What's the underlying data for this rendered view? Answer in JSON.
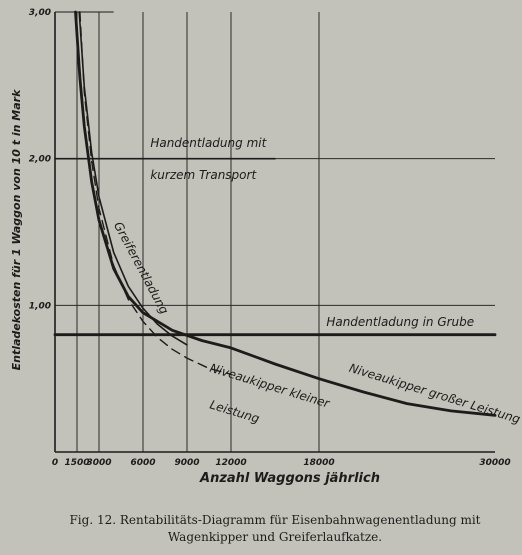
{
  "chart_data": {
    "type": "line",
    "ylabel": "Entladekosten für 1 Waggon von 10 t in Mark",
    "xlabel": "Anzahl Waggons jährlich",
    "xlim": [
      0,
      30000
    ],
    "ylim": [
      0,
      3.0
    ],
    "x_ticks": [
      0,
      1500,
      3000,
      6000,
      9000,
      12000,
      18000,
      30000
    ],
    "x_tick_labels": [
      "0",
      "1500",
      "3000",
      "6000",
      "9000",
      "12000",
      "18000",
      "30000"
    ],
    "y_ticks": [
      1.0,
      2.0,
      3.0
    ],
    "y_tick_labels": [
      "1,00",
      "2,00",
      "3,00"
    ],
    "grid": true,
    "series": [
      {
        "name": "Handentladung mit kurzem Transport",
        "style": "thin-solid",
        "x": [
          0,
          15000
        ],
        "y": [
          2.0,
          2.0
        ]
      },
      {
        "name": "Handentladung in Grube",
        "style": "thick-solid",
        "x": [
          0,
          30000
        ],
        "y": [
          0.8,
          0.8
        ]
      },
      {
        "name": "Greiferentladung",
        "style": "thin-solid",
        "x": [
          1650,
          2000,
          2500,
          3000,
          4000,
          5000,
          6000,
          7000,
          8000,
          9000
        ],
        "y": [
          3.0,
          2.49,
          2.04,
          1.74,
          1.36,
          1.13,
          0.98,
          0.87,
          0.79,
          0.73
        ]
      },
      {
        "name": "Niveaukipper kleiner Leistung",
        "style": "dashed",
        "x": [
          1700,
          2000,
          2500,
          3000,
          4000,
          5000,
          6000,
          7000,
          8000,
          9000,
          10500,
          12000
        ],
        "y": [
          3.0,
          2.45,
          1.98,
          1.66,
          1.27,
          1.04,
          0.89,
          0.78,
          0.7,
          0.64,
          0.57,
          0.53
        ]
      },
      {
        "name": "Niveaukipper großer Leistung",
        "style": "thick-solid",
        "x": [
          1400,
          1700,
          2000,
          2500,
          3000,
          4000,
          5000,
          6000,
          8000,
          10000,
          12000,
          15000,
          18000,
          21000,
          24000,
          27000,
          30000
        ],
        "y": [
          3.0,
          2.55,
          2.22,
          1.84,
          1.58,
          1.25,
          1.06,
          0.95,
          0.83,
          0.76,
          0.71,
          0.6,
          0.5,
          0.41,
          0.33,
          0.28,
          0.25
        ]
      }
    ],
    "annotations": [
      {
        "text": "Handentladung mit",
        "x": 6500,
        "y": 2.08
      },
      {
        "text": "kurzem Transport",
        "x": 6500,
        "y": 1.86
      },
      {
        "text": "Greiferentladung",
        "x": 4000,
        "y": 1.55
      },
      {
        "text": "Handentladung in Grube",
        "x": 18500,
        "y": 0.86
      },
      {
        "text": "Niveaukipper großer Leistung",
        "x": 20000,
        "y": 0.55
      },
      {
        "text": "Niveaukipper kleiner",
        "x": 10500,
        "y": 0.55
      },
      {
        "text": "Leistung",
        "x": 10500,
        "y": 0.3
      }
    ]
  },
  "caption": {
    "line1": "Fig. 12. Rentabilitäts-Diagramm für Eisenbahnwagenentladung mit",
    "line2": "Wagenkipper und Greiferlaufkatze."
  }
}
